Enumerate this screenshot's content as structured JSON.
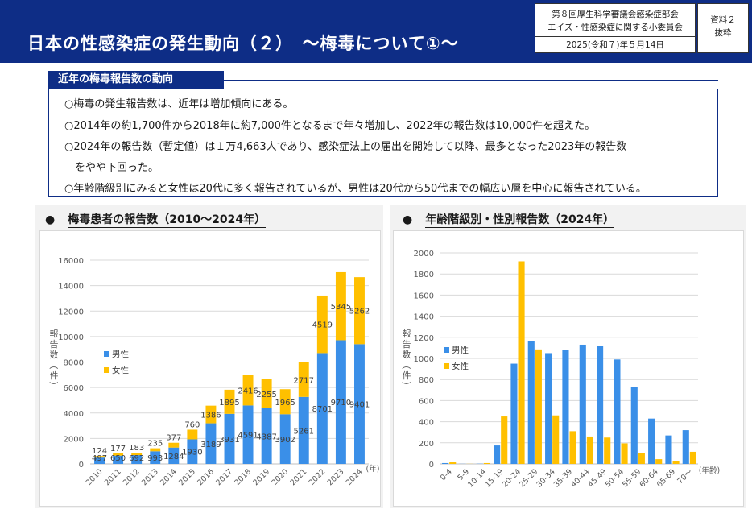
{
  "header": {
    "title": "日本の性感染症の発生動向（２）　～梅毒について①～",
    "meta_line1": "第８回厚生科学審議会感染症部会",
    "meta_line2": "エイズ・性感染症に関する小委員会",
    "meta_date": "2025(令和７)年５月14日",
    "doc_label1": "資料２",
    "doc_label2": "抜粋"
  },
  "section": {
    "heading": "近年の梅毒報告数の動向",
    "bullets": [
      "○梅毒の発生報告数は、近年は増加傾向にある。",
      "○2014年の約1,700件から2018年に約7,000件となるまで年々増加し、2022年の報告数は10,000件を超えた。",
      "○2024年の報告数（暫定値）は１万4,663人であり、感染症法上の届出を開始して以降、最多となった2023年の報告数",
      "　をやや下回った。",
      "○年齢階級別にみると女性は20代に多く報告されているが、男性は20代から50代までの幅広い層を中心に報告されている。"
    ]
  },
  "colors": {
    "male": "#3a8fe8",
    "female": "#ffc000",
    "header": "#0e2d86"
  },
  "chart_data": [
    {
      "type": "bar",
      "stacked": true,
      "title": "梅毒患者の報告数（2010～2024年）",
      "bullet": "●",
      "ylabel": "報告数（件）",
      "xlabel": "(年)",
      "ylim": [
        0,
        16000
      ],
      "yticks": [
        0,
        2000,
        4000,
        6000,
        8000,
        10000,
        12000,
        14000,
        16000
      ],
      "legend_position": "left",
      "categories": [
        "2010",
        "2011",
        "2012",
        "2013",
        "2014",
        "2015",
        "2016",
        "2017",
        "2018",
        "2019",
        "2020",
        "2021",
        "2022",
        "2023",
        "2024"
      ],
      "series": [
        {
          "name": "男性",
          "values": [
            497,
            650,
            692,
            993,
            1284,
            1930,
            3189,
            3931,
            4591,
            4387,
            3902,
            5261,
            8701,
            9710,
            9401
          ]
        },
        {
          "name": "女性",
          "values": [
            124,
            177,
            183,
            235,
            377,
            760,
            1386,
            1895,
            2416,
            2255,
            1965,
            2717,
            4519,
            5345,
            5262
          ]
        }
      ]
    },
    {
      "type": "bar",
      "stacked": false,
      "title": "年齢階級別・性別報告数（2024年）",
      "bullet": "●",
      "ylabel": "報告数（件）",
      "xlabel": "(年齢)",
      "ylim": [
        0,
        2000
      ],
      "yticks": [
        0,
        200,
        400,
        600,
        800,
        1000,
        1200,
        1400,
        1600,
        1800,
        2000
      ],
      "legend_position": "left",
      "categories": [
        "0-4",
        "5-9",
        "10-14",
        "15-19",
        "20-24",
        "25-29",
        "30-34",
        "35-39",
        "40-44",
        "45-49",
        "50-54",
        "55-59",
        "60-64",
        "65-69",
        "70～"
      ],
      "series": [
        {
          "name": "男性",
          "values": [
            8,
            1,
            2,
            175,
            950,
            1165,
            1050,
            1080,
            1130,
            1120,
            990,
            730,
            430,
            270,
            320
          ]
        },
        {
          "name": "女性",
          "values": [
            15,
            1,
            8,
            450,
            1920,
            1085,
            460,
            310,
            260,
            250,
            195,
            100,
            45,
            25,
            115
          ]
        }
      ]
    }
  ]
}
